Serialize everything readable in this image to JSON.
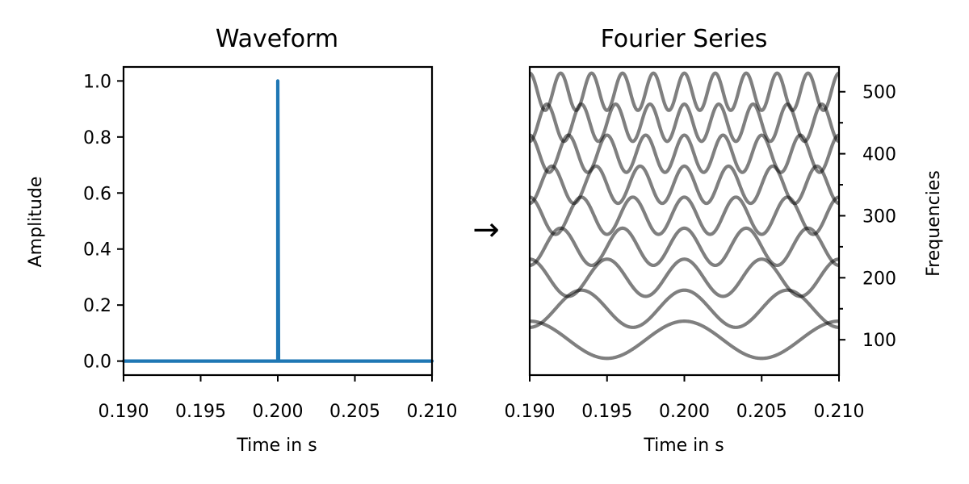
{
  "arrow": "→",
  "chart_data": [
    {
      "type": "line",
      "title": "Waveform",
      "xlabel": "Time in s",
      "ylabel": "Amplitude",
      "xlim": [
        0.19,
        0.21
      ],
      "ylim": [
        -0.05,
        1.05
      ],
      "xticks": [
        0.19,
        0.195,
        0.2,
        0.205,
        0.21
      ],
      "xtick_labels": [
        "0.190",
        "0.195",
        "0.200",
        "0.205",
        "0.210"
      ],
      "yticks": [
        0.0,
        0.2,
        0.4,
        0.6,
        0.8,
        1.0
      ],
      "ytick_labels": [
        "0.0",
        "0.2",
        "0.4",
        "0.6",
        "0.8",
        "1.0"
      ],
      "series": [
        {
          "color": "#1f77b4",
          "x": [
            0.19,
            0.19995,
            0.2,
            0.2,
            0.20005,
            0.21
          ],
          "y": [
            0.0,
            0.0,
            0.0,
            1.0,
            0.0,
            0.0
          ]
        }
      ]
    },
    {
      "type": "line",
      "title": "Fourier Series",
      "xlabel": "Time in s",
      "ylabel": "Frequencies",
      "y_axis_side": "right",
      "xlim": [
        0.19,
        0.21
      ],
      "ylim": [
        43,
        540
      ],
      "xticks": [
        0.19,
        0.195,
        0.2,
        0.205,
        0.21
      ],
      "xtick_labels": [
        "0.190",
        "0.195",
        "0.200",
        "0.205",
        "0.210"
      ],
      "yticks": [
        100,
        200,
        300,
        400,
        500
      ],
      "ytick_labels": [
        "100",
        "200",
        "300",
        "400",
        "500"
      ],
      "y_minor_ticks": [
        150,
        250,
        350,
        450
      ],
      "line_color": "#000000",
      "line_alpha": 0.5,
      "component_amplitude": 30,
      "components": [
        {
          "frequency": 100,
          "offset": 100
        },
        {
          "frequency": 150,
          "offset": 150
        },
        {
          "frequency": 200,
          "offset": 200
        },
        {
          "frequency": 250,
          "offset": 250
        },
        {
          "frequency": 300,
          "offset": 300
        },
        {
          "frequency": 350,
          "offset": 350
        },
        {
          "frequency": 400,
          "offset": 400
        },
        {
          "frequency": 450,
          "offset": 450
        },
        {
          "frequency": 500,
          "offset": 500
        }
      ]
    }
  ]
}
